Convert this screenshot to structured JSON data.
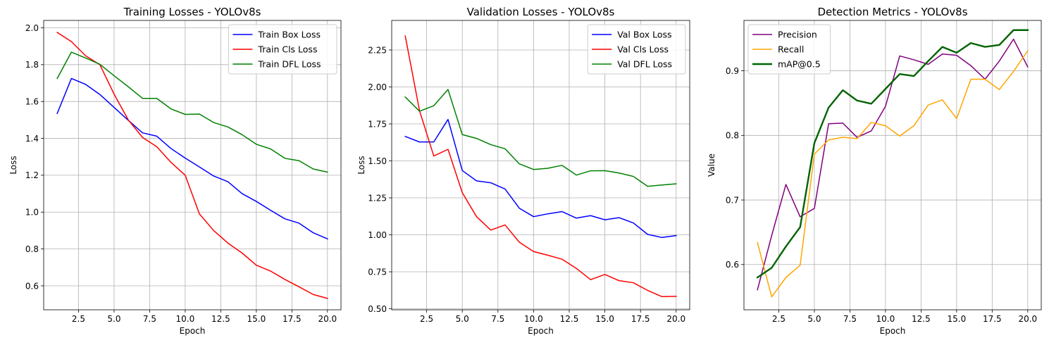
{
  "figure": {
    "background": "#ffffff",
    "grid": true
  },
  "chart_data": [
    {
      "type": "line",
      "title": "Training Losses - YOLOv8s",
      "xlabel": "Epoch",
      "ylabel": "Loss",
      "xlim": [
        0.05,
        20.95
      ],
      "ylim": [
        0.47,
        2.04
      ],
      "xticks": [
        2.5,
        5.0,
        7.5,
        10.0,
        12.5,
        15.0,
        17.5,
        20.0
      ],
      "xtick_labels": [
        "2.5",
        "5.0",
        "7.5",
        "10.0",
        "12.5",
        "15.0",
        "17.5",
        "20.0"
      ],
      "yticks": [
        0.6,
        0.8,
        1.0,
        1.2,
        1.4,
        1.6,
        1.8,
        2.0
      ],
      "ytick_labels": [
        "0.6",
        "0.8",
        "1.0",
        "1.2",
        "1.4",
        "1.6",
        "1.8",
        "2.0"
      ],
      "legend_position": "top-right",
      "x": [
        1,
        2,
        3,
        4,
        5,
        6,
        7,
        8,
        9,
        10,
        11,
        12,
        13,
        14,
        15,
        16,
        17,
        18,
        19,
        20
      ],
      "series": [
        {
          "name": "Train Box Loss",
          "color": "#0000ff",
          "width": 1.5,
          "values": [
            1.535,
            1.725,
            1.693,
            1.638,
            1.568,
            1.498,
            1.43,
            1.412,
            1.345,
            1.293,
            1.245,
            1.196,
            1.165,
            1.1,
            1.058,
            1.01,
            0.964,
            0.94,
            0.888,
            0.855
          ]
        },
        {
          "name": "Train Cls Loss",
          "color": "#ff0000",
          "width": 1.5,
          "values": [
            1.975,
            1.925,
            1.848,
            1.8,
            1.64,
            1.5,
            1.405,
            1.355,
            1.27,
            1.2,
            0.99,
            0.9,
            0.832,
            0.778,
            0.712,
            0.68,
            0.635,
            0.595,
            0.553,
            0.532
          ]
        },
        {
          "name": "Train DFL Loss",
          "color": "#008000",
          "width": 1.5,
          "values": [
            1.725,
            1.868,
            1.836,
            1.802,
            1.74,
            1.68,
            1.617,
            1.617,
            1.56,
            1.53,
            1.532,
            1.486,
            1.462,
            1.42,
            1.368,
            1.343,
            1.292,
            1.279,
            1.234,
            1.217
          ]
        }
      ]
    },
    {
      "type": "line",
      "title": "Validation Losses - YOLOv8s",
      "xlabel": "Epoch",
      "ylabel": "Loss",
      "xlim": [
        0.05,
        20.95
      ],
      "ylim": [
        0.493,
        2.45
      ],
      "xticks": [
        2.5,
        5.0,
        7.5,
        10.0,
        12.5,
        15.0,
        17.5,
        20.0
      ],
      "xtick_labels": [
        "2.5",
        "5.0",
        "7.5",
        "10.0",
        "12.5",
        "15.0",
        "17.5",
        "20.0"
      ],
      "yticks": [
        0.5,
        0.75,
        1.0,
        1.25,
        1.5,
        1.75,
        2.0,
        2.25
      ],
      "ytick_labels": [
        "0.50",
        "0.75",
        "1.00",
        "1.25",
        "1.50",
        "1.75",
        "2.00",
        "2.25"
      ],
      "legend_position": "top-right",
      "x": [
        1,
        2,
        3,
        4,
        5,
        6,
        7,
        8,
        9,
        10,
        11,
        12,
        13,
        14,
        15,
        16,
        17,
        18,
        19,
        20
      ],
      "series": [
        {
          "name": "Val Box Loss",
          "color": "#0000ff",
          "width": 1.5,
          "values": [
            1.665,
            1.628,
            1.628,
            1.78,
            1.435,
            1.365,
            1.352,
            1.31,
            1.18,
            1.123,
            1.142,
            1.157,
            1.113,
            1.13,
            1.102,
            1.116,
            1.08,
            1.003,
            0.982,
            0.995
          ]
        },
        {
          "name": "Val Cls Loss",
          "color": "#ff0000",
          "width": 1.5,
          "values": [
            2.345,
            1.84,
            1.533,
            1.578,
            1.285,
            1.123,
            1.032,
            1.067,
            0.95,
            0.887,
            0.862,
            0.835,
            0.773,
            0.697,
            0.732,
            0.69,
            0.676,
            0.624,
            0.582,
            0.584
          ]
        },
        {
          "name": "Val DFL Loss",
          "color": "#008000",
          "width": 1.5,
          "values": [
            1.932,
            1.836,
            1.873,
            1.983,
            1.678,
            1.652,
            1.61,
            1.582,
            1.48,
            1.442,
            1.45,
            1.47,
            1.404,
            1.433,
            1.434,
            1.418,
            1.395,
            1.328,
            1.337,
            1.345
          ]
        }
      ]
    },
    {
      "type": "line",
      "title": "Detection Metrics - YOLOv8s",
      "xlabel": "Epoch",
      "ylabel": "Value",
      "xlim": [
        0.05,
        20.95
      ],
      "ylim": [
        0.53,
        0.978
      ],
      "xticks": [
        2.5,
        5.0,
        7.5,
        10.0,
        12.5,
        15.0,
        17.5,
        20.0
      ],
      "xtick_labels": [
        "2.5",
        "5.0",
        "7.5",
        "10.0",
        "12.5",
        "15.0",
        "17.5",
        "20.0"
      ],
      "yticks": [
        0.6,
        0.7,
        0.8,
        0.9
      ],
      "ytick_labels": [
        "0.6",
        "0.7",
        "0.8",
        "0.9"
      ],
      "legend_position": "top-left",
      "x": [
        1,
        2,
        3,
        4,
        5,
        6,
        7,
        8,
        9,
        10,
        11,
        12,
        13,
        14,
        15,
        16,
        17,
        18,
        19,
        20
      ],
      "series": [
        {
          "name": "Precision",
          "color": "#800080",
          "width": 1.5,
          "values": [
            0.561,
            0.645,
            0.724,
            0.674,
            0.687,
            0.818,
            0.819,
            0.797,
            0.807,
            0.845,
            0.923,
            0.917,
            0.91,
            0.926,
            0.924,
            0.908,
            0.887,
            0.915,
            0.949,
            0.906
          ]
        },
        {
          "name": "Recall",
          "color": "#ffa500",
          "width": 1.5,
          "values": [
            0.634,
            0.55,
            0.58,
            0.599,
            0.771,
            0.793,
            0.797,
            0.795,
            0.82,
            0.815,
            0.799,
            0.815,
            0.847,
            0.855,
            0.826,
            0.887,
            0.887,
            0.871,
            0.899,
            0.931
          ]
        },
        {
          "name": "mAP@0.5",
          "color": "#006400",
          "width": 2.4,
          "values": [
            0.58,
            0.595,
            0.628,
            0.658,
            0.788,
            0.843,
            0.87,
            0.854,
            0.849,
            0.872,
            0.895,
            0.892,
            0.915,
            0.937,
            0.928,
            0.943,
            0.937,
            0.94,
            0.963,
            0.963
          ]
        }
      ]
    }
  ]
}
